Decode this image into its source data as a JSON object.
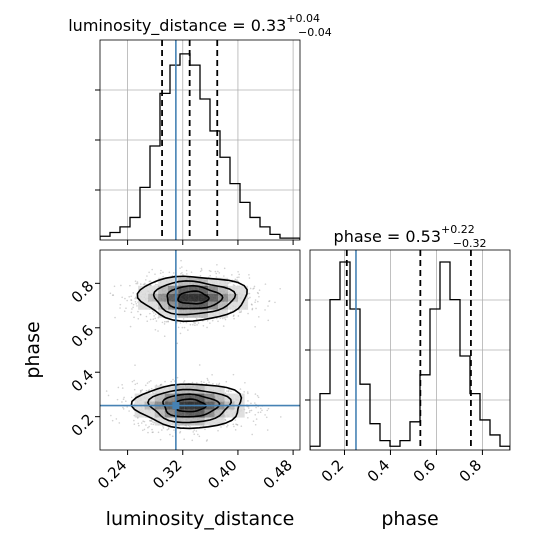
{
  "colors": {
    "truth": "#4682b4",
    "histogram": "#000000",
    "grid": "#b0b0b0",
    "samples": "#9a9a9a"
  },
  "chart_data": [
    {
      "type": "histogram",
      "panel": "luminosity_distance-1d",
      "title_prefix": "luminosity_distance = ",
      "title_value": "0.33",
      "title_upper": "+0.04",
      "title_lower": "−0.04",
      "xlim": [
        0.2,
        0.49
      ],
      "grid": true,
      "bin_edges": [
        0.2,
        0.2145,
        0.229,
        0.2435,
        0.258,
        0.2725,
        0.287,
        0.3015,
        0.316,
        0.3305,
        0.345,
        0.3595,
        0.374,
        0.3885,
        0.403,
        0.4175,
        0.432,
        0.4465,
        0.461,
        0.4755,
        0.49
      ],
      "counts": [
        0.02,
        0.04,
        0.07,
        0.12,
        0.28,
        0.5,
        0.78,
        0.93,
        0.99,
        0.93,
        0.75,
        0.58,
        0.44,
        0.3,
        0.2,
        0.12,
        0.07,
        0.03,
        0.01,
        0.01
      ],
      "quantiles": [
        0.29,
        0.33,
        0.37
      ],
      "truth": 0.31
    },
    {
      "type": "scatter",
      "panel": "luminosity_distance-vs-phase",
      "xlabel": "luminosity_distance",
      "ylabel": "phase",
      "xlim": [
        0.2,
        0.49
      ],
      "ylim": [
        0.05,
        0.95
      ],
      "xticks": [
        "0.24",
        "0.32",
        "0.40",
        "0.48"
      ],
      "yticks": [
        "0.2",
        "0.4",
        "0.6",
        "0.8"
      ],
      "xtick_values": [
        0.24,
        0.32,
        0.4,
        0.48
      ],
      "ytick_values": [
        0.2,
        0.4,
        0.6,
        0.8
      ],
      "modes": [
        {
          "center": [
            0.335,
            0.735
          ],
          "sigma": [
            0.04,
            0.06
          ]
        },
        {
          "center": [
            0.33,
            0.25
          ],
          "sigma": [
            0.04,
            0.06
          ]
        }
      ],
      "contour_levels": [
        "0.5-sigma",
        "1-sigma",
        "1.5-sigma",
        "2-sigma"
      ],
      "truth": [
        0.31,
        0.25
      ]
    },
    {
      "type": "histogram",
      "panel": "phase-1d",
      "title_prefix": "phase = ",
      "title_value": "0.53",
      "title_upper": "+0.22",
      "title_lower": "−0.32",
      "xlabel": "phase",
      "xlim": [
        0.05,
        0.92
      ],
      "xticks": [
        "0.2",
        "0.4",
        "0.6",
        "0.8"
      ],
      "xtick_values": [
        0.2,
        0.4,
        0.6,
        0.8
      ],
      "grid": true,
      "bin_edges": [
        0.05,
        0.0935,
        0.137,
        0.1805,
        0.224,
        0.2675,
        0.311,
        0.3545,
        0.398,
        0.4415,
        0.485,
        0.5285,
        0.572,
        0.6155,
        0.659,
        0.7025,
        0.746,
        0.7895,
        0.833,
        0.8765,
        0.92
      ],
      "counts": [
        0.02,
        0.3,
        0.8,
        1.0,
        0.75,
        0.35,
        0.14,
        0.05,
        0.02,
        0.05,
        0.15,
        0.4,
        0.75,
        1.0,
        0.8,
        0.5,
        0.3,
        0.16,
        0.08,
        0.02
      ],
      "quantiles": [
        0.21,
        0.53,
        0.75
      ],
      "truth": 0.25
    }
  ]
}
